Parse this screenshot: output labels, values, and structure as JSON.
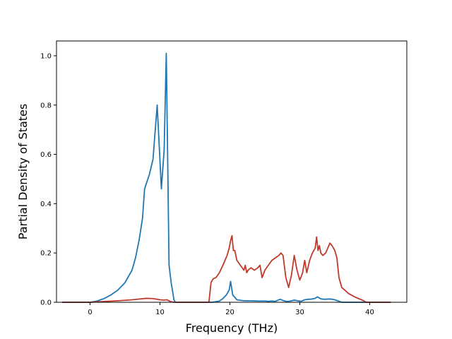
{
  "chart_data": {
    "type": "line",
    "title": "",
    "xlabel": "Frequency (THz)",
    "ylabel": "Partial Density of States",
    "xlim": [
      -4.8,
      45.3
    ],
    "ylim": [
      0,
      1.06
    ],
    "xticks": [
      0,
      10,
      20,
      30,
      40
    ],
    "yticks": [
      0.0,
      0.2,
      0.4,
      0.6,
      0.8,
      1.0
    ],
    "xtick_labels": [
      "0",
      "10",
      "20",
      "30",
      "40"
    ],
    "ytick_labels": [
      "0.0",
      "0.2",
      "0.4",
      "0.6",
      "0.8",
      "1.0"
    ],
    "grid": false,
    "legend": "none",
    "series": [
      {
        "color": "#1f77b4",
        "x": [
          -4.0,
          0.0,
          1.0,
          2.0,
          3.0,
          4.0,
          5.0,
          6.0,
          6.5,
          7.0,
          7.5,
          7.8,
          8.5,
          9.0,
          9.6,
          10.2,
          10.6,
          10.9,
          11.3,
          11.6,
          12.0,
          12.2,
          17.5,
          18.5,
          19.0,
          19.5,
          19.9,
          20.1,
          20.4,
          21.0,
          22.0,
          23.0,
          24.0,
          25.0,
          25.5,
          26.0,
          26.5,
          27.2,
          27.7,
          28.2,
          28.7,
          29.2,
          29.7,
          30.2,
          30.7,
          31.2,
          31.7,
          32.2,
          32.5,
          33.0,
          33.5,
          34.0,
          34.5,
          35.0,
          35.5,
          36.0,
          40.0,
          43.0
        ],
        "y": [
          0.0,
          0.0,
          0.005,
          0.015,
          0.03,
          0.05,
          0.08,
          0.13,
          0.18,
          0.25,
          0.34,
          0.46,
          0.52,
          0.58,
          0.8,
          0.46,
          0.62,
          1.01,
          0.15,
          0.08,
          0.01,
          0.0,
          0.0,
          0.005,
          0.015,
          0.03,
          0.05,
          0.085,
          0.03,
          0.01,
          0.006,
          0.006,
          0.005,
          0.005,
          0.004,
          0.005,
          0.004,
          0.012,
          0.006,
          0.003,
          0.005,
          0.009,
          0.006,
          0.004,
          0.01,
          0.012,
          0.013,
          0.016,
          0.022,
          0.014,
          0.012,
          0.013,
          0.013,
          0.01,
          0.005,
          0.0,
          0.0,
          0.0
        ]
      },
      {
        "color": "#c0392b",
        "x": [
          -4.0,
          0.0,
          2.0,
          4.0,
          6.0,
          7.0,
          8.0,
          9.0,
          10.0,
          10.5,
          11.0,
          11.5,
          12.0,
          13.0,
          17.0,
          17.3,
          17.6,
          18.0,
          18.5,
          19.0,
          19.3,
          19.6,
          19.9,
          20.1,
          20.3,
          20.5,
          20.7,
          21.0,
          21.5,
          22.0,
          22.2,
          22.4,
          22.6,
          23.0,
          23.5,
          24.0,
          24.3,
          24.6,
          25.0,
          25.5,
          26.0,
          26.5,
          27.0,
          27.3,
          27.6,
          28.0,
          28.4,
          28.8,
          29.2,
          29.6,
          30.0,
          30.4,
          30.7,
          31.0,
          31.4,
          31.8,
          32.2,
          32.4,
          32.6,
          32.8,
          33.0,
          33.3,
          33.7,
          34.0,
          34.3,
          34.6,
          35.0,
          35.3,
          35.6,
          36.0,
          37.0,
          38.0,
          39.0,
          39.5,
          43.0
        ],
        "y": [
          0.0,
          0.0,
          0.003,
          0.006,
          0.01,
          0.013,
          0.016,
          0.015,
          0.01,
          0.009,
          0.01,
          0.003,
          0.0,
          0.0,
          0.0,
          0.08,
          0.095,
          0.1,
          0.12,
          0.15,
          0.17,
          0.19,
          0.22,
          0.25,
          0.27,
          0.21,
          0.21,
          0.17,
          0.15,
          0.13,
          0.15,
          0.12,
          0.13,
          0.14,
          0.13,
          0.14,
          0.15,
          0.1,
          0.13,
          0.15,
          0.17,
          0.18,
          0.19,
          0.2,
          0.19,
          0.1,
          0.06,
          0.11,
          0.19,
          0.13,
          0.09,
          0.12,
          0.17,
          0.12,
          0.17,
          0.2,
          0.22,
          0.265,
          0.21,
          0.23,
          0.2,
          0.19,
          0.2,
          0.22,
          0.24,
          0.23,
          0.21,
          0.18,
          0.1,
          0.06,
          0.035,
          0.02,
          0.008,
          0.0,
          0.0
        ]
      }
    ]
  }
}
